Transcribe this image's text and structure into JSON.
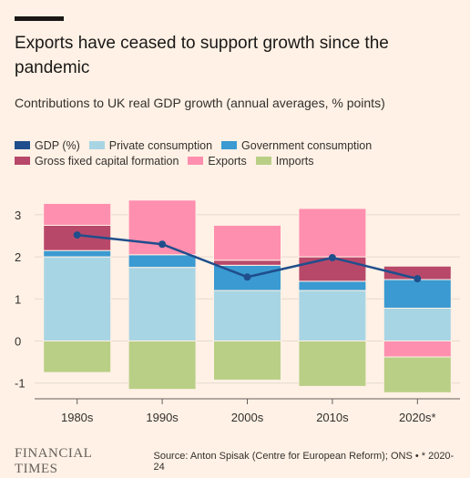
{
  "header": {
    "title": "Exports have ceased to support growth since the pandemic",
    "subtitle": "Contributions to UK real GDP growth (annual averages, % points)"
  },
  "legend": {
    "row1": [
      {
        "label": "GDP (%)",
        "color": "#1F4E8C",
        "name": "legend-gdp"
      },
      {
        "label": "Private consumption",
        "color": "#A8D5E4",
        "name": "legend-private-consumption"
      },
      {
        "label": "Government consumption",
        "color": "#3A9AD1",
        "name": "legend-government-consumption"
      }
    ],
    "row2": [
      {
        "label": "Gross fixed capital formation",
        "color": "#B8486A",
        "name": "legend-gfcf"
      },
      {
        "label": "Exports",
        "color": "#FF8FAF",
        "name": "legend-exports"
      },
      {
        "label": "Imports",
        "color": "#B9CF86",
        "name": "legend-imports"
      }
    ]
  },
  "footer": {
    "logo": "FINANCIAL TIMES",
    "source": "Source: Anton Spisak (Centre for European Reform); ONS • * 2020-24"
  },
  "chart_data": {
    "type": "bar",
    "stacked": true,
    "categories": [
      "1980s",
      "1990s",
      "2000s",
      "2010s",
      "2020s*"
    ],
    "ylim": [
      -1.25,
      3.3
    ],
    "yticks": [
      -1,
      0,
      1,
      2,
      3
    ],
    "grid": true,
    "series": [
      {
        "name": "Private consumption",
        "color": "#A8D5E4",
        "values": [
          2.0,
          1.75,
          1.2,
          1.2,
          0.78
        ]
      },
      {
        "name": "Government consumption",
        "color": "#3A9AD1",
        "values": [
          0.15,
          0.3,
          0.6,
          0.22,
          0.68
        ]
      },
      {
        "name": "Gross fixed capital formation",
        "color": "#B8486A",
        "values": [
          0.6,
          0.0,
          0.12,
          0.58,
          0.32
        ]
      },
      {
        "name": "Exports",
        "color": "#FF8FAF",
        "values": [
          0.52,
          1.3,
          0.83,
          1.15,
          -0.38
        ]
      },
      {
        "name": "Imports",
        "color": "#B9CF86",
        "values": [
          -0.75,
          -1.15,
          -0.93,
          -1.08,
          -0.85
        ]
      }
    ],
    "line": {
      "name": "GDP (%)",
      "color": "#1F4E8C",
      "values": [
        2.52,
        2.3,
        1.52,
        1.98,
        1.48
      ]
    }
  }
}
